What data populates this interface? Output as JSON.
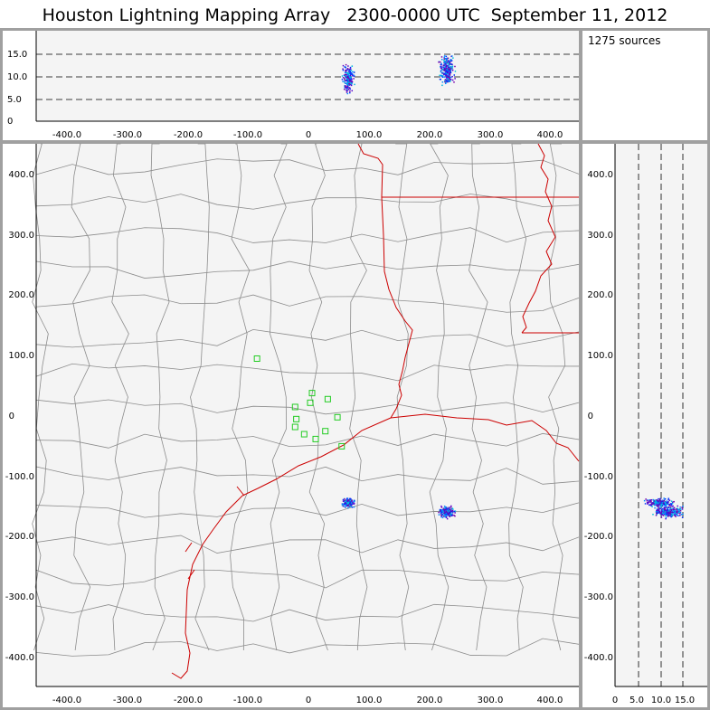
{
  "title": "Houston Lightning Mapping Array   2300-0000 UTC  September 11, 2012",
  "source_count_label": "1275 sources",
  "colors": {
    "county_lines": "#8c8c8c",
    "state_lines": "#cc0000",
    "stations": "#22cc22",
    "panel_bg": "#f4f4f4",
    "frame": "#a0a0a0"
  },
  "axes": {
    "x_ticks": [
      "-400.0",
      "-300.0",
      "-200.0",
      "-100.0",
      "0",
      "100.0",
      "200.0",
      "300.0",
      "400.0"
    ],
    "y_ticks": [
      "400.0",
      "300.0",
      "200.0",
      "100.0",
      "0",
      "-100.0",
      "-200.0",
      "-300.0",
      "-400.0"
    ],
    "alt_ticks": [
      "0",
      "5.0",
      "10.0",
      "15.0"
    ]
  },
  "stations": [
    {
      "x": -85,
      "y": 95
    },
    {
      "x": -22,
      "y": 15
    },
    {
      "x": -20,
      "y": -5
    },
    {
      "x": -22,
      "y": -18
    },
    {
      "x": -7,
      "y": -30
    },
    {
      "x": 3,
      "y": 22
    },
    {
      "x": 6,
      "y": 38
    },
    {
      "x": 12,
      "y": -38
    },
    {
      "x": 28,
      "y": -25
    },
    {
      "x": 32,
      "y": 28
    },
    {
      "x": 48,
      "y": -2
    },
    {
      "x": 55,
      "y": -50
    }
  ],
  "storm_cells": [
    {
      "x": 65,
      "y": -143,
      "alt": 9.5,
      "sigma": 4,
      "count": 180
    },
    {
      "x": 228,
      "y": -158,
      "alt": 11.5,
      "sigma": 5,
      "count": 240
    }
  ]
}
